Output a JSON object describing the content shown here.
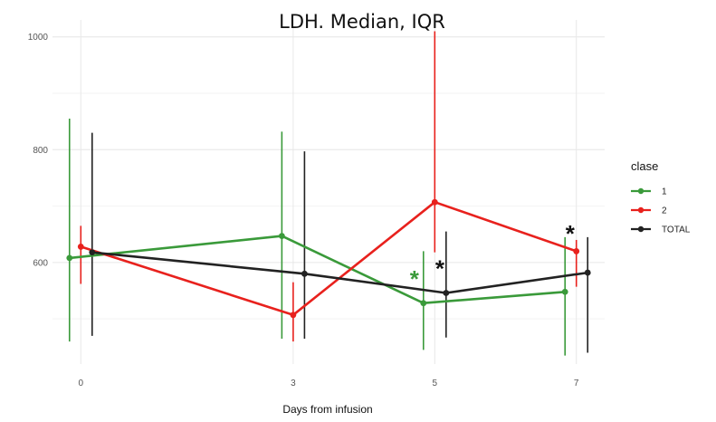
{
  "chart_data": {
    "type": "line",
    "title": "LDH. Median, IQR",
    "xlabel": "Days from infusion",
    "ylabel": "",
    "x": [
      0,
      3,
      5,
      7
    ],
    "xlim": [
      -0.4,
      7.4
    ],
    "ylim": [
      420,
      1030
    ],
    "x_ticks": [
      "0",
      "3",
      "5",
      "7"
    ],
    "y_ticks": [
      600,
      800,
      1000
    ],
    "grid": true,
    "legend": {
      "title": "clase",
      "placement": "right"
    },
    "series": [
      {
        "name": "1",
        "color": "#3a9a3a",
        "offset": -0.16,
        "median": [
          608,
          647,
          528,
          548
        ],
        "q1": [
          460,
          465,
          445,
          435
        ],
        "q3": [
          855,
          832,
          620,
          645
        ]
      },
      {
        "name": "2",
        "color": "#e8211d",
        "offset": 0.0,
        "median": [
          628,
          507,
          707,
          620
        ],
        "q1": [
          562,
          460,
          618,
          557
        ],
        "q3": [
          665,
          565,
          1010,
          640
        ]
      },
      {
        "name": "TOTAL",
        "color": "#222222",
        "offset": 0.16,
        "median": [
          618,
          580,
          546,
          582
        ],
        "q1": [
          470,
          465,
          467,
          440
        ],
        "q3": [
          830,
          797,
          655,
          645
        ]
      }
    ],
    "annotations": [
      {
        "text": "*",
        "x": 5,
        "series": "1",
        "color": "#3a9a3a"
      },
      {
        "text": "*",
        "x": 5,
        "series": "TOTAL",
        "color": "#111111"
      },
      {
        "text": "*",
        "x": 7,
        "series": "2",
        "color": "#111111"
      }
    ]
  }
}
